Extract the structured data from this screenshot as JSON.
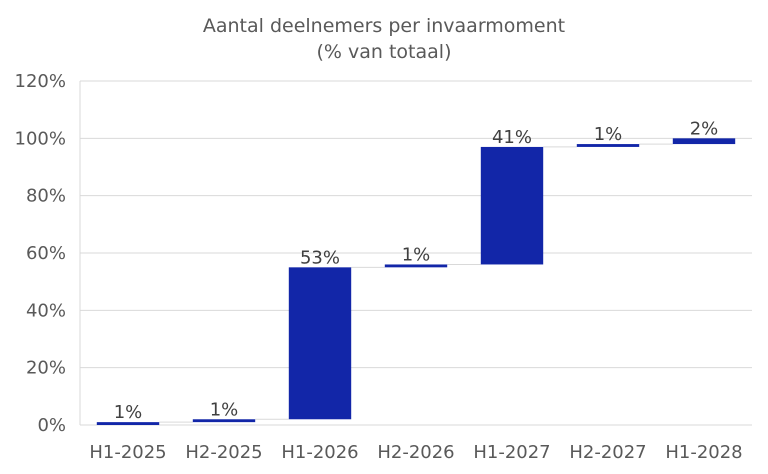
{
  "chart_data": {
    "type": "bar",
    "subtype": "waterfall",
    "title": "Aantal deelnemers per invaarmoment",
    "subtitle": "(% van totaal)",
    "categories": [
      "H1-2025",
      "H2-2025",
      "H1-2026",
      "H2-2026",
      "H1-2027",
      "H2-2027",
      "H1-2028"
    ],
    "values": [
      1,
      1,
      53,
      1,
      41,
      1,
      2
    ],
    "data_labels": [
      "1%",
      "1%",
      "53%",
      "1%",
      "41%",
      "1%",
      "2%"
    ],
    "cumulative_end": [
      1,
      2,
      55,
      56,
      97,
      98,
      100
    ],
    "ylim": [
      0,
      120
    ],
    "yticks": [
      0,
      20,
      40,
      60,
      80,
      100,
      120
    ],
    "ytick_labels": [
      "0%",
      "20%",
      "40%",
      "60%",
      "80%",
      "100%",
      "120%"
    ],
    "grid": true,
    "legend": "none",
    "bar_color": "#1226a8"
  }
}
